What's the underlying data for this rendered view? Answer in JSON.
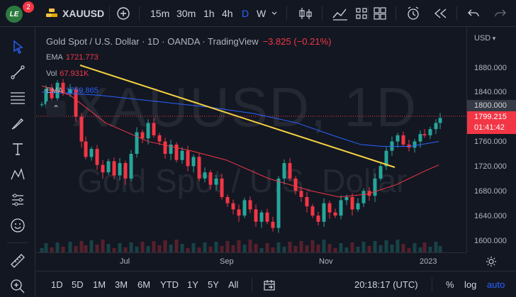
{
  "header": {
    "avatar_text": "LE",
    "notification_count": "2",
    "symbol": "XAUUSD",
    "timeframes": [
      "15m",
      "30m",
      "1h",
      "4h",
      "D",
      "W"
    ],
    "active_timeframe": "D",
    "icons": [
      "add-symbol-icon",
      "candles-icon",
      "indicators-icon",
      "layouts-icon",
      "alert-icon",
      "replay-icon",
      "undo-icon",
      "redo-icon"
    ]
  },
  "legend": {
    "title": "Gold Spot / U.S. Dollar · 1D · OANDA · TradingView",
    "change": "−3.825 (−0.21%)",
    "indicators": [
      {
        "name": "EMA",
        "value": "1721.773",
        "color": "#f23645"
      },
      {
        "name": "Vol",
        "value": "67.931K",
        "color": "#f23645"
      },
      {
        "name": "EMA",
        "value": "1759.865",
        "color": "#2962ff"
      }
    ],
    "collapse_glyph": "⌃"
  },
  "watermark": {
    "symbol": "XAUUSD, 1D",
    "description": "Gold Spot / U.S. Dollar"
  },
  "price_axis": {
    "unit": "USD",
    "labels": [
      "1880.000",
      "1840.000",
      "1800.000",
      "1760.000",
      "1720.000",
      "1680.000",
      "1640.000",
      "1600.000"
    ],
    "current_marker": "1800.000",
    "last_price": "1799.215",
    "countdown": "01:41:42"
  },
  "time_axis": {
    "labels": [
      "Jul",
      "Sep",
      "Nov",
      "2023"
    ]
  },
  "bottom_bar": {
    "ranges": [
      "1D",
      "5D",
      "1M",
      "3M",
      "6M",
      "YTD",
      "1Y",
      "5Y",
      "All"
    ],
    "clock": "20:18:17 (UTC)",
    "percent": "%",
    "log": "log",
    "auto": "auto"
  },
  "colors": {
    "up": "#26a69a",
    "down": "#f23645",
    "ema_fast": "#f23645",
    "ema_slow": "#2962ff",
    "trendline": "#f5d142",
    "background": "#131722"
  },
  "chart_data": {
    "type": "candlestick",
    "ylim": [
      1600,
      1880
    ],
    "ohlc": [],
    "trendline": {
      "from": [
        0.06,
        1865
      ],
      "to": [
        0.98,
        1690
      ]
    }
  }
}
